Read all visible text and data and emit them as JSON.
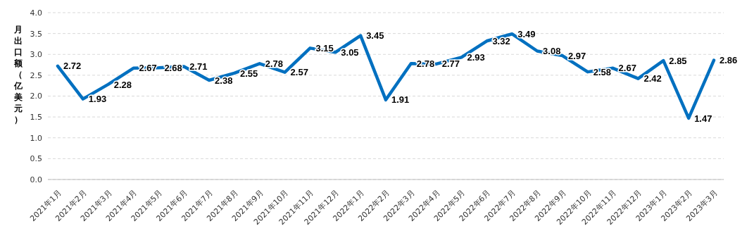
{
  "chart_data": {
    "type": "line",
    "ylabel": "月出口额（亿美元）",
    "categories": [
      "2021年1月",
      "2021年2月",
      "2021年3月",
      "2021年4月",
      "2021年5月",
      "2021年6月",
      "2021年7月",
      "2021年8月",
      "2021年9月",
      "2021年10月",
      "2021年11月",
      "2021年12月",
      "2022年1月",
      "2022年2月",
      "2022年3月",
      "2022年4月",
      "2022年5月",
      "2022年6月",
      "2022年7月",
      "2022年8月",
      "2022年9月",
      "2022年10月",
      "2022年11月",
      "2022年12月",
      "2023年1月",
      "2023年2月",
      "2023年3月"
    ],
    "series": [
      {
        "color": "#0070c0",
        "values": [
          2.72,
          1.93,
          2.28,
          2.67,
          2.68,
          2.71,
          2.38,
          2.55,
          2.78,
          2.57,
          3.15,
          3.05,
          3.45,
          1.91,
          2.78,
          2.77,
          2.93,
          3.32,
          3.49,
          3.08,
          2.97,
          2.58,
          2.67,
          2.42,
          2.85,
          1.47,
          2.86
        ]
      }
    ],
    "ylim": [
      0,
      4
    ],
    "yticks": [
      {
        "value": 0,
        "label": "0.0"
      },
      {
        "value": 0.5,
        "label": "0.5"
      },
      {
        "value": 1,
        "label": "1.0"
      },
      {
        "value": 1.5,
        "label": "1.5"
      },
      {
        "value": 2,
        "label": "2.0"
      },
      {
        "value": 2.5,
        "label": "2.5"
      },
      {
        "value": 3,
        "label": "3.0"
      },
      {
        "value": 3.5,
        "label": "3.5"
      },
      {
        "value": 4,
        "label": "4.0"
      }
    ],
    "grid": "y",
    "data_labels": true,
    "marker": "none",
    "line_style": "solid",
    "legend": false
  }
}
